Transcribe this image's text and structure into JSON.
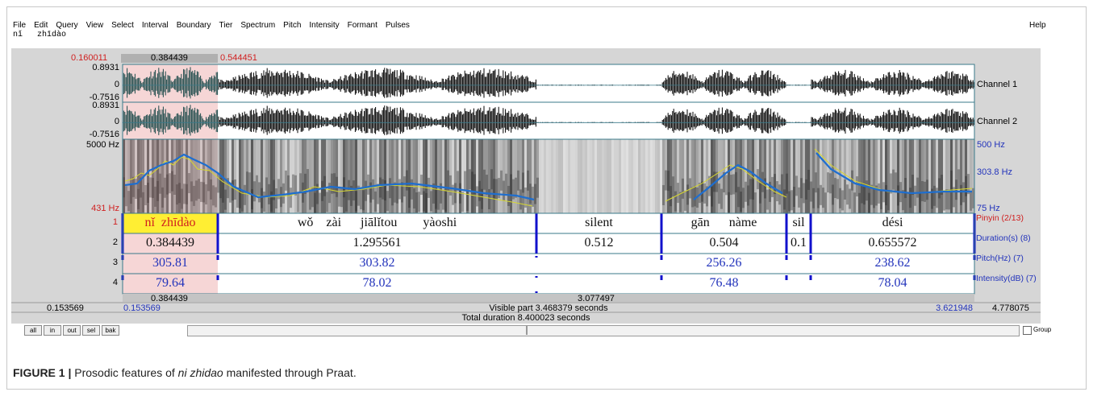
{
  "menu": {
    "items": [
      "File",
      "Edit",
      "Query",
      "View",
      "Select",
      "Interval",
      "Boundary",
      "Tier",
      "Spectrum",
      "Pitch",
      "Intensity",
      "Formant",
      "Pulses"
    ],
    "help": "Help"
  },
  "text_field": "nǐ   zhīdào",
  "selection": {
    "left": "0.160011",
    "selected": "0.384439",
    "right": "0.544451"
  },
  "channels": [
    {
      "max": "0.8931",
      "zero": "0",
      "min": "-0.7516",
      "label": "Channel 1"
    },
    {
      "max": "0.8931",
      "zero": "0",
      "min": "-0.7516",
      "label": "Channel 2"
    }
  ],
  "spectrogram": {
    "top": "5000 Hz",
    "bottom": "431 Hz",
    "pitch_top": "500 Hz",
    "pitch_mid": "303.8 Hz",
    "pitch_bottom": "75 Hz"
  },
  "tiers": [
    {
      "number": "1",
      "name": "Pinyin (2/13)",
      "intervals": [
        "nǐ  zhīdào",
        "wǒ    zài      jiālǐtou        yàoshi",
        "silent",
        "gān      nàme",
        "sil",
        "dési"
      ]
    },
    {
      "number": "2",
      "name": "Duration(s) (8)",
      "intervals": [
        "0.384439",
        "1.295561",
        "0.512",
        "0.504",
        "0.1",
        "0.655572"
      ]
    },
    {
      "number": "3",
      "name": "Pitch(Hz) (7)",
      "intervals": [
        "305.81",
        "303.82",
        "256.26",
        "238.62"
      ]
    },
    {
      "number": "4",
      "name": "Intensity(dB) (7)",
      "intervals": [
        "79.64",
        "78.02",
        "76.48",
        "78.04"
      ]
    }
  ],
  "bottom": {
    "sel_duration": "0.384439",
    "rest_duration": "3.077497",
    "window_start": "0.153569",
    "visible_start": "0.153569",
    "visible": "Visible part 3.468379 seconds",
    "visible_end": "3.621948",
    "window_end": "4.778075",
    "total": "Total duration 8.400023 seconds"
  },
  "buttons": [
    "all",
    "in",
    "out",
    "sel",
    "bak"
  ],
  "group": "Group",
  "caption": {
    "label": "FIGURE 1 |",
    "before": " Prosodic features of ",
    "italic": "ni zhidao",
    "after": " manifested through Praat."
  }
}
